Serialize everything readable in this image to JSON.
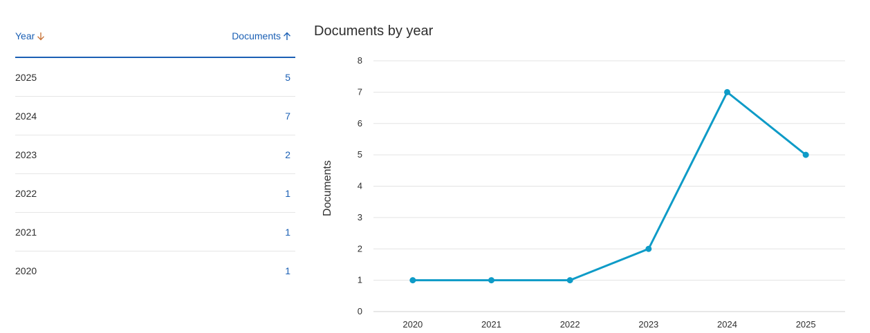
{
  "table": {
    "headers": {
      "year": "Year",
      "documents": "Documents"
    },
    "sort_icons": {
      "year": "arrow-down-icon",
      "documents": "arrow-up-icon"
    },
    "colors": {
      "link": "#1a5fb4",
      "sort_active": "#c8743a",
      "divider": "#1a5fb4"
    },
    "rows": [
      {
        "year": "2025",
        "documents": "5"
      },
      {
        "year": "2024",
        "documents": "7"
      },
      {
        "year": "2023",
        "documents": "2"
      },
      {
        "year": "2022",
        "documents": "1"
      },
      {
        "year": "2021",
        "documents": "1"
      },
      {
        "year": "2020",
        "documents": "1"
      }
    ]
  },
  "chart_data": {
    "type": "line",
    "title": "Documents by year",
    "xlabel": "",
    "ylabel": "Documents",
    "x": [
      2020,
      2021,
      2022,
      2023,
      2024,
      2025
    ],
    "series": [
      {
        "values": [
          1,
          1,
          1,
          2,
          7,
          5
        ],
        "color": "#0e9bc7"
      }
    ],
    "ylim": [
      0,
      8
    ],
    "yticks": [
      0,
      1,
      2,
      3,
      4,
      5,
      6,
      7,
      8
    ],
    "grid": true,
    "legend": "none"
  }
}
